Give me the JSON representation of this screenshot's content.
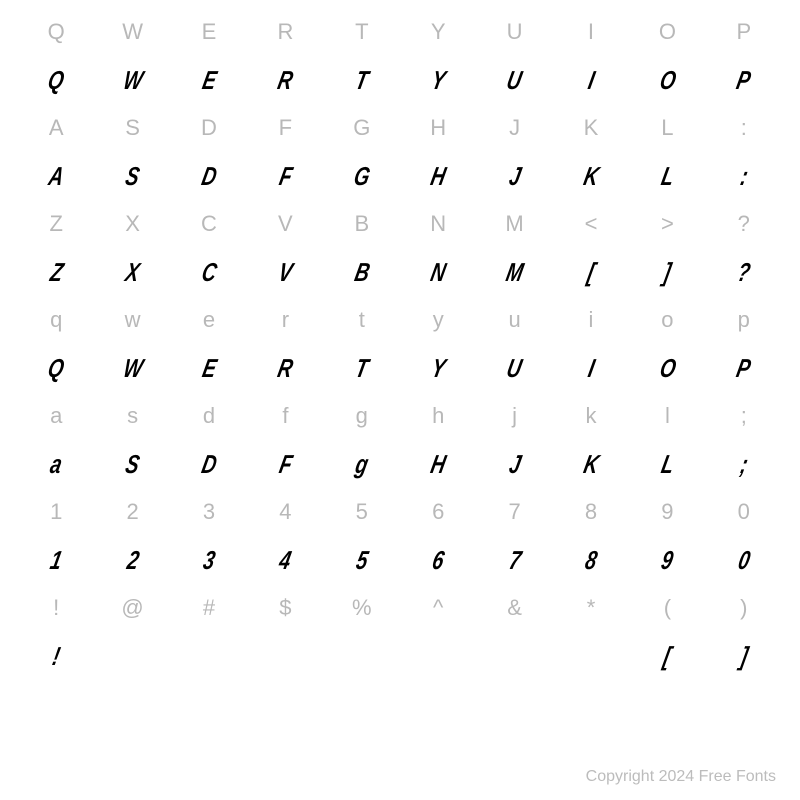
{
  "rows": [
    {
      "type": "label",
      "chars": [
        "Q",
        "W",
        "E",
        "R",
        "T",
        "Y",
        "U",
        "I",
        "O",
        "P"
      ]
    },
    {
      "type": "glyph",
      "chars": [
        "Q",
        "W",
        "E",
        "R",
        "T",
        "Y",
        "U",
        "I",
        "O",
        "P"
      ]
    },
    {
      "type": "label",
      "chars": [
        "A",
        "S",
        "D",
        "F",
        "G",
        "H",
        "J",
        "K",
        "L",
        ":"
      ]
    },
    {
      "type": "glyph",
      "chars": [
        "A",
        "S",
        "D",
        "F",
        "G",
        "H",
        "J",
        "K",
        "L",
        ":"
      ]
    },
    {
      "type": "label",
      "chars": [
        "Z",
        "X",
        "C",
        "V",
        "B",
        "N",
        "M",
        "<",
        ">",
        "?"
      ]
    },
    {
      "type": "glyph",
      "chars": [
        "Z",
        "X",
        "C",
        "V",
        "B",
        "N",
        "M",
        "[",
        "]",
        "?"
      ]
    },
    {
      "type": "label",
      "chars": [
        "q",
        "w",
        "e",
        "r",
        "t",
        "y",
        "u",
        "i",
        "o",
        "p"
      ]
    },
    {
      "type": "glyph",
      "chars": [
        "Q",
        "W",
        "E",
        "R",
        "T",
        "Y",
        "U",
        "I",
        "O",
        "P"
      ]
    },
    {
      "type": "label",
      "chars": [
        "a",
        "s",
        "d",
        "f",
        "g",
        "h",
        "j",
        "k",
        "l",
        ";"
      ]
    },
    {
      "type": "glyph",
      "chars": [
        "a",
        "S",
        "D",
        "F",
        "g",
        "H",
        "J",
        "K",
        "L",
        ";"
      ]
    },
    {
      "type": "label",
      "chars": [
        "1",
        "2",
        "3",
        "4",
        "5",
        "6",
        "7",
        "8",
        "9",
        "0"
      ]
    },
    {
      "type": "glyph",
      "chars": [
        "1",
        "2",
        "3",
        "4",
        "5",
        "6",
        "7",
        "8",
        "9",
        "0"
      ]
    },
    {
      "type": "label",
      "chars": [
        "!",
        "@",
        "#",
        "$",
        "%",
        "^",
        "&",
        "*",
        "(",
        ")"
      ]
    },
    {
      "type": "glyph",
      "chars": [
        "!",
        "",
        "",
        "",
        "",
        "",
        "",
        "",
        "[",
        "]"
      ]
    }
  ],
  "copyright": "Copyright 2024 Free Fonts",
  "colors": {
    "label": "#b8b8b8",
    "glyph": "#000000",
    "background": "#ffffff",
    "copyright": "#bcbcbc"
  },
  "typography": {
    "label_fontsize": 22,
    "glyph_fontsize": 26,
    "copyright_fontsize": 16
  }
}
